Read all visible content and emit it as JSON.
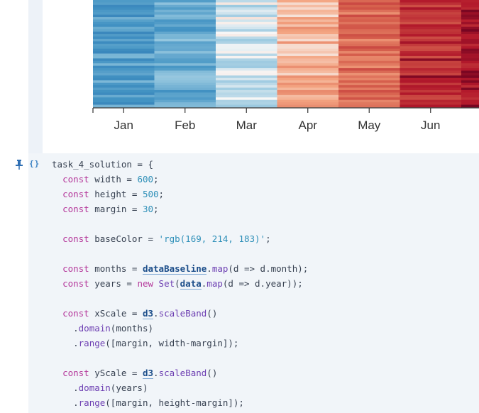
{
  "chart_data": {
    "type": "heatmap",
    "x_categories": [
      "Jan",
      "Feb",
      "Mar",
      "Apr",
      "May",
      "Jun"
    ],
    "color_scale": "RdBu (reversed, blue = cold, red = warm)",
    "column_base_values": [
      -0.55,
      -0.45,
      -0.1,
      0.25,
      0.55,
      0.85
    ],
    "colors": {
      "axis": "#333333",
      "tick_text": "#333333"
    }
  },
  "code_cell": {
    "name": "task_4_solution",
    "lines": [
      [
        {
          "t": "task_4_solution = {",
          "c": "plain"
        }
      ],
      [
        {
          "t": "  ",
          "c": "plain"
        },
        {
          "t": "const",
          "c": "kw"
        },
        {
          "t": " width = ",
          "c": "plain"
        },
        {
          "t": "600",
          "c": "num"
        },
        {
          "t": ";",
          "c": "plain"
        }
      ],
      [
        {
          "t": "  ",
          "c": "plain"
        },
        {
          "t": "const",
          "c": "kw"
        },
        {
          "t": " height = ",
          "c": "plain"
        },
        {
          "t": "500",
          "c": "num"
        },
        {
          "t": ";",
          "c": "plain"
        }
      ],
      [
        {
          "t": "  ",
          "c": "plain"
        },
        {
          "t": "const",
          "c": "kw"
        },
        {
          "t": " margin = ",
          "c": "plain"
        },
        {
          "t": "30",
          "c": "num"
        },
        {
          "t": ";",
          "c": "plain"
        }
      ],
      [
        {
          "t": "",
          "c": "plain"
        }
      ],
      [
        {
          "t": "  ",
          "c": "plain"
        },
        {
          "t": "const",
          "c": "kw"
        },
        {
          "t": " baseColor = ",
          "c": "plain"
        },
        {
          "t": "'rgb(169, 214, 183)'",
          "c": "str"
        },
        {
          "t": ";",
          "c": "plain"
        }
      ],
      [
        {
          "t": "",
          "c": "plain"
        }
      ],
      [
        {
          "t": "  ",
          "c": "plain"
        },
        {
          "t": "const",
          "c": "kw"
        },
        {
          "t": " months = ",
          "c": "plain"
        },
        {
          "t": "dataBaseline",
          "c": "ref"
        },
        {
          "t": ".",
          "c": "plain"
        },
        {
          "t": "map",
          "c": "fn"
        },
        {
          "t": "(d => d.month);",
          "c": "plain"
        }
      ],
      [
        {
          "t": "  ",
          "c": "plain"
        },
        {
          "t": "const",
          "c": "kw"
        },
        {
          "t": " years = ",
          "c": "plain"
        },
        {
          "t": "new",
          "c": "kw"
        },
        {
          "t": " ",
          "c": "plain"
        },
        {
          "t": "Set",
          "c": "fn"
        },
        {
          "t": "(",
          "c": "plain"
        },
        {
          "t": "data",
          "c": "ref"
        },
        {
          "t": ".",
          "c": "plain"
        },
        {
          "t": "map",
          "c": "fn"
        },
        {
          "t": "(d => d.year));",
          "c": "plain"
        }
      ],
      [
        {
          "t": "",
          "c": "plain"
        }
      ],
      [
        {
          "t": "  ",
          "c": "plain"
        },
        {
          "t": "const",
          "c": "kw"
        },
        {
          "t": " xScale = ",
          "c": "plain"
        },
        {
          "t": "d3",
          "c": "ref"
        },
        {
          "t": ".",
          "c": "plain"
        },
        {
          "t": "scaleBand",
          "c": "fn"
        },
        {
          "t": "()",
          "c": "plain"
        }
      ],
      [
        {
          "t": "    .",
          "c": "plain"
        },
        {
          "t": "domain",
          "c": "fn"
        },
        {
          "t": "(months)",
          "c": "plain"
        }
      ],
      [
        {
          "t": "    .",
          "c": "plain"
        },
        {
          "t": "range",
          "c": "fn"
        },
        {
          "t": "([margin, width-margin]);",
          "c": "plain"
        }
      ],
      [
        {
          "t": "",
          "c": "plain"
        }
      ],
      [
        {
          "t": "  ",
          "c": "plain"
        },
        {
          "t": "const",
          "c": "kw"
        },
        {
          "t": " yScale = ",
          "c": "plain"
        },
        {
          "t": "d3",
          "c": "ref"
        },
        {
          "t": ".",
          "c": "plain"
        },
        {
          "t": "scaleBand",
          "c": "fn"
        },
        {
          "t": "()",
          "c": "plain"
        }
      ],
      [
        {
          "t": "    .",
          "c": "plain"
        },
        {
          "t": "domain",
          "c": "fn"
        },
        {
          "t": "(years)",
          "c": "plain"
        }
      ],
      [
        {
          "t": "    .",
          "c": "plain"
        },
        {
          "t": "range",
          "c": "fn"
        },
        {
          "t": "([margin, height-margin]);",
          "c": "plain"
        }
      ]
    ]
  }
}
